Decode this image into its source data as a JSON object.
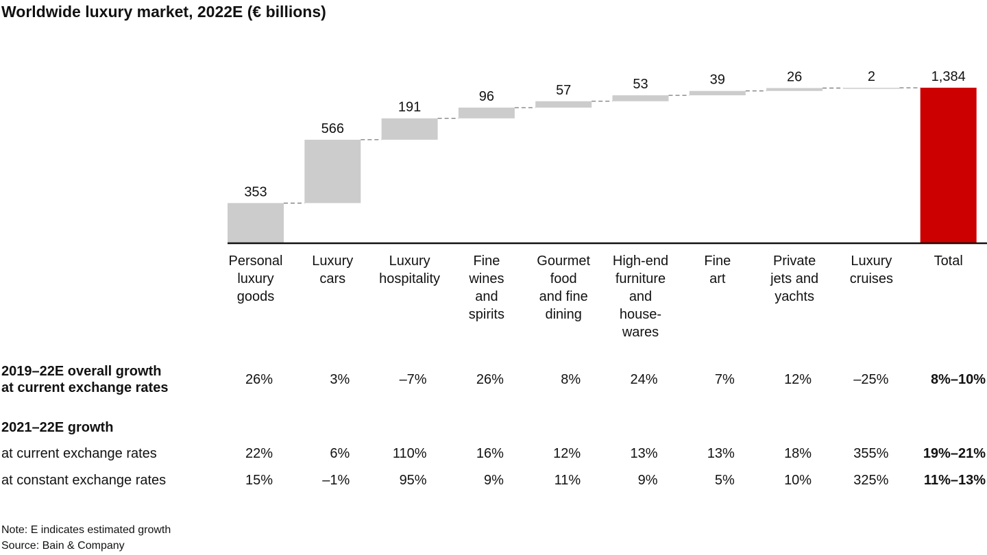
{
  "title": "Worldwide luxury market, 2022E (€ billions)",
  "colors": {
    "bar": "#cccccc",
    "total": "#cc0000",
    "connector": "#555555",
    "axis": "#111111"
  },
  "chart_data": {
    "type": "bar",
    "variant": "waterfall",
    "categories": [
      "Personal\nluxury\ngoods",
      "Luxury\ncars",
      "Luxury\nhospitality",
      "Fine\nwines\nand\nspirits",
      "Gourmet\nfood\nand fine\ndining",
      "High-end\nfurniture\nand\nhouse-\nwares",
      "Fine\nart",
      "Private\njets and\nyachts",
      "Luxury\ncruises",
      "Total"
    ],
    "values": [
      353,
      566,
      191,
      96,
      57,
      53,
      39,
      26,
      2,
      1384
    ],
    "value_labels": [
      "353",
      "566",
      "191",
      "96",
      "57",
      "53",
      "39",
      "26",
      "2",
      "1,384"
    ],
    "total_index": 9,
    "ylim": [
      0,
      1384
    ],
    "grid": false
  },
  "table": {
    "rows": [
      {
        "label": [
          "2019–22E overall growth",
          "at current exchange rates"
        ],
        "bold": true,
        "values": [
          "26%",
          "3%",
          "–7%",
          "26%",
          "8%",
          "24%",
          "7%",
          "12%",
          "–25%",
          "8%–10%"
        ]
      },
      {
        "label": [
          "2021–22E growth"
        ],
        "bold": true,
        "values": []
      },
      {
        "label": [
          "at current exchange rates"
        ],
        "bold": false,
        "values": [
          "22%",
          "6%",
          "110%",
          "16%",
          "12%",
          "13%",
          "13%",
          "18%",
          "355%",
          "19%–21%"
        ]
      },
      {
        "label": [
          "at constant exchange rates"
        ],
        "bold": false,
        "values": [
          "15%",
          "–1%",
          "95%",
          "9%",
          "11%",
          "9%",
          "5%",
          "10%",
          "325%",
          "11%–13%"
        ]
      }
    ]
  },
  "footnotes": [
    "Note: E indicates estimated growth",
    "Source: Bain & Company"
  ]
}
